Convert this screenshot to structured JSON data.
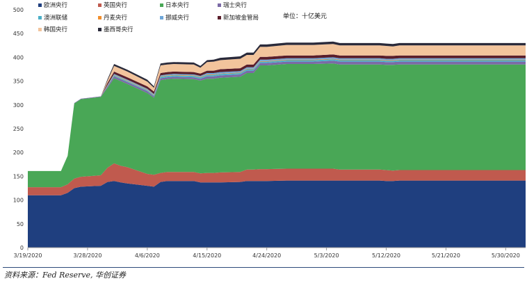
{
  "chart_data": {
    "type": "area",
    "stacked": true,
    "unit_label": "单位：十亿美元",
    "x": [
      "3/19/2020",
      "3/20/2020",
      "3/23/2020",
      "3/24/2020",
      "3/25/2020",
      "3/26/2020",
      "3/27/2020",
      "3/30/2020",
      "3/31/2020",
      "4/1/2020",
      "4/2/2020",
      "4/3/2020",
      "4/6/2020",
      "4/7/2020",
      "4/8/2020",
      "4/9/2020",
      "4/10/2020",
      "4/13/2020",
      "4/14/2020",
      "4/15/2020",
      "4/16/2020",
      "4/17/2020",
      "4/20/2020",
      "4/21/2020",
      "4/22/2020",
      "4/23/2020",
      "4/24/2020",
      "4/27/2020",
      "4/28/2020",
      "4/29/2020",
      "4/30/2020",
      "5/1/2020",
      "5/4/2020",
      "5/5/2020",
      "5/6/2020",
      "5/7/2020",
      "5/8/2020",
      "5/11/2020",
      "5/12/2020",
      "5/13/2020",
      "5/14/2020",
      "5/15/2020",
      "5/18/2020",
      "5/19/2020",
      "5/20/2020",
      "5/21/2020",
      "5/22/2020",
      "5/26/2020",
      "5/27/2020",
      "5/28/2020",
      "5/29/2020",
      "6/1/2020",
      "6/2/2020"
    ],
    "x_ticks": [
      "3/19/2020",
      "3/28/2020",
      "4/6/2020",
      "4/15/2020",
      "4/24/2020",
      "5/3/2020",
      "5/12/2020",
      "5/21/2020",
      "5/30/2020"
    ],
    "ylim": [
      0,
      500
    ],
    "y_ticks": [
      0,
      50,
      100,
      150,
      200,
      250,
      300,
      350,
      400,
      450,
      500
    ],
    "grid": false,
    "legend_position": "top-left",
    "series": [
      {
        "name": "欧洲央行",
        "color": "#1f3f7f",
        "values": [
          110,
          110,
          110,
          110,
          115,
          125,
          128,
          130,
          138,
          140,
          137,
          135,
          130,
          128,
          138,
          140,
          140,
          140,
          137,
          137,
          137,
          137,
          138,
          140,
          140,
          140,
          140,
          141,
          141,
          141,
          141,
          141,
          141,
          141,
          141,
          141,
          141,
          141,
          140,
          140,
          141,
          141,
          141,
          141,
          141,
          141,
          141,
          141,
          141,
          141,
          141,
          141,
          141
        ]
      },
      {
        "name": "英国央行",
        "color": "#c05a4e",
        "values": [
          17,
          17,
          17,
          17,
          18,
          20,
          21,
          22,
          30,
          37,
          35,
          34,
          25,
          25,
          19,
          19,
          19,
          19,
          19,
          20,
          20,
          21,
          21,
          24,
          24,
          25,
          25,
          25,
          25,
          25,
          25,
          25,
          25,
          23,
          23,
          23,
          23,
          23,
          23,
          22,
          22,
          22,
          22,
          22,
          22,
          22,
          22,
          22,
          22,
          22,
          22,
          22,
          22
        ]
      },
      {
        "name": "日本央行",
        "color": "#49a756",
        "values": [
          34,
          34,
          34,
          34,
          60,
          158,
          163,
          165,
          168,
          179,
          178,
          175,
          170,
          162,
          195,
          195,
          196,
          195,
          195,
          198,
          198,
          199,
          200,
          203,
          203,
          218,
          218,
          220,
          220,
          220,
          220,
          220,
          221,
          221,
          221,
          221,
          221,
          221,
          221,
          222,
          222,
          222,
          222,
          222,
          222,
          222,
          222,
          222,
          222,
          222,
          222,
          222,
          222
        ]
      },
      {
        "name": "瑞士央行",
        "color": "#7b6aa6",
        "values": [
          0,
          0,
          0,
          0,
          0,
          1,
          1,
          1,
          3,
          4,
          4,
          4,
          4,
          3,
          4,
          4,
          4,
          4,
          4,
          5,
          5,
          5,
          5,
          5,
          5,
          5,
          5,
          5,
          5,
          5,
          5,
          5,
          6,
          6,
          6,
          6,
          6,
          6,
          6,
          6,
          6,
          6,
          6,
          6,
          6,
          6,
          6,
          6,
          6,
          6,
          6,
          6,
          6
        ]
      },
      {
        "name": "澳洲联储",
        "color": "#4bb0c8",
        "values": [
          0,
          0,
          0,
          0,
          0,
          0,
          0,
          0,
          1,
          2,
          2,
          2,
          2,
          2,
          3,
          3,
          3,
          3,
          3,
          3,
          3,
          3,
          3,
          3,
          3,
          3,
          3,
          3,
          3,
          3,
          3,
          3,
          3,
          3,
          3,
          3,
          3,
          3,
          3,
          3,
          3,
          3,
          3,
          3,
          3,
          3,
          3,
          3,
          3,
          3,
          3,
          3,
          3
        ]
      },
      {
        "name": "丹麦央行",
        "color": "#f28e2b",
        "values": [
          0,
          0,
          0,
          0,
          0,
          0,
          0,
          0,
          1,
          1,
          1,
          1,
          1,
          1,
          1,
          1,
          1,
          1,
          1,
          1,
          1,
          1,
          1,
          1,
          1,
          1,
          1,
          1,
          1,
          1,
          1,
          1,
          1,
          1,
          1,
          1,
          1,
          1,
          1,
          1,
          1,
          1,
          1,
          1,
          1,
          1,
          1,
          1,
          1,
          1,
          1,
          1,
          1
        ]
      },
      {
        "name": "挪威央行",
        "color": "#6ea6d8",
        "values": [
          0,
          0,
          0,
          0,
          0,
          0,
          0,
          0,
          1,
          2,
          2,
          2,
          2,
          2,
          2,
          2,
          2,
          2,
          2,
          3,
          3,
          3,
          3,
          3,
          3,
          3,
          3,
          3,
          3,
          3,
          3,
          3,
          3,
          3,
          3,
          3,
          3,
          3,
          3,
          3,
          3,
          3,
          3,
          3,
          3,
          3,
          3,
          3,
          3,
          3,
          3,
          3,
          3
        ]
      },
      {
        "name": "新加坡金管局",
        "color": "#5a1e2b",
        "values": [
          0,
          0,
          0,
          0,
          0,
          0,
          0,
          0,
          4,
          5,
          5,
          5,
          5,
          5,
          5,
          5,
          5,
          5,
          5,
          5,
          5,
          6,
          6,
          6,
          6,
          6,
          6,
          6,
          6,
          6,
          6,
          6,
          6,
          6,
          6,
          6,
          6,
          6,
          6,
          6,
          6,
          6,
          6,
          6,
          6,
          6,
          6,
          6,
          6,
          6,
          6,
          6,
          6
        ]
      },
      {
        "name": "韩国央行",
        "color": "#f2c49c",
        "values": [
          0,
          0,
          0,
          0,
          0,
          0,
          0,
          0,
          5,
          12,
          12,
          12,
          10,
          8,
          16,
          16,
          16,
          16,
          12,
          18,
          19,
          19,
          20,
          20,
          20,
          21,
          21,
          22,
          22,
          22,
          22,
          22,
          22,
          21,
          21,
          21,
          21,
          21,
          21,
          20,
          21,
          21,
          21,
          21,
          21,
          21,
          21,
          21,
          21,
          21,
          21,
          21,
          21
        ]
      },
      {
        "name": "墨西哥央行",
        "color": "#2a2a3a",
        "values": [
          0,
          0,
          0,
          0,
          0,
          0,
          0,
          0,
          3,
          4,
          4,
          4,
          4,
          3,
          4,
          4,
          4,
          4,
          4,
          4,
          4,
          5,
          5,
          5,
          5,
          5,
          5,
          5,
          5,
          5,
          5,
          5,
          5,
          5,
          5,
          5,
          5,
          5,
          5,
          5,
          5,
          5,
          5,
          5,
          5,
          5,
          5,
          5,
          5,
          5,
          5,
          5,
          5
        ]
      }
    ]
  },
  "footer": {
    "source_text": "资料来源：Fed Reserve, 华创证券"
  }
}
